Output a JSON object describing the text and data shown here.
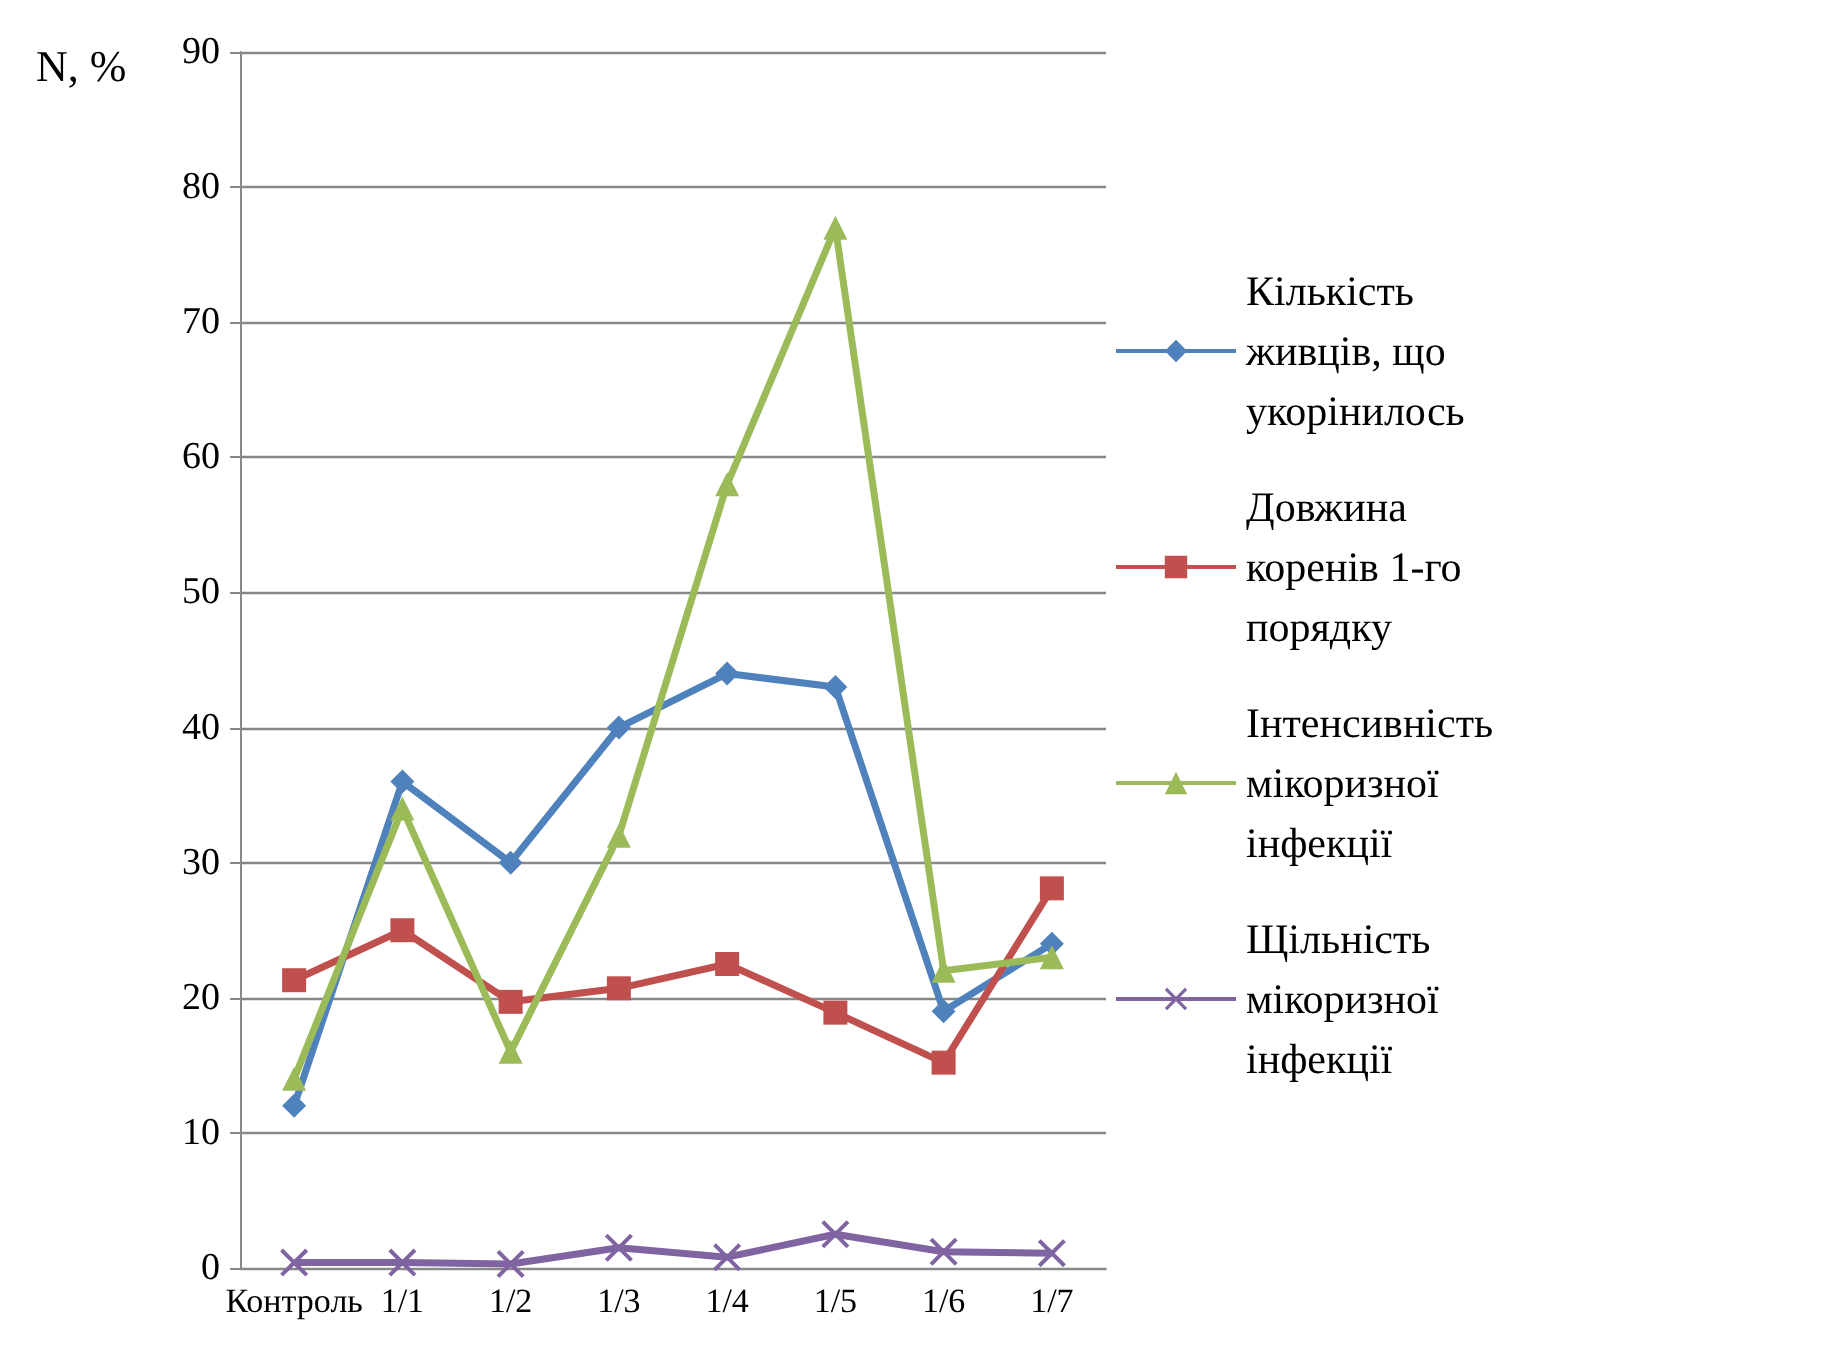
{
  "chart_data": {
    "type": "line",
    "ylabel": "N, %",
    "categories": [
      "Контроль",
      "1/1",
      "1/2",
      "1/3",
      "1/4",
      "1/5",
      "1/6",
      "1/7"
    ],
    "series": [
      {
        "name": "Кількість живців, що укорінилось",
        "color": "#4f81bd",
        "marker": "diamond",
        "values": [
          12,
          36,
          30,
          40,
          44,
          43,
          19,
          24
        ]
      },
      {
        "name": "Довжина коренів 1-го порядку",
        "color": "#c0504d",
        "marker": "square",
        "values": [
          21.3,
          25,
          19.7,
          20.7,
          22.5,
          18.9,
          15.2,
          28.1
        ]
      },
      {
        "name": "Інтенсивність мікоризної інфекції",
        "color": "#9bbb59",
        "marker": "triangle",
        "values": [
          14,
          34,
          16,
          32,
          58,
          77,
          22,
          23
        ]
      },
      {
        "name": "Щільність мікоризної інфекції",
        "color": "#8064a2",
        "marker": "cross",
        "values": [
          0.4,
          0.4,
          0.3,
          1.5,
          0.8,
          2.5,
          1.2,
          1.1
        ]
      }
    ],
    "ylim": [
      0,
      90
    ],
    "yticks": [
      0,
      10,
      20,
      30,
      40,
      50,
      60,
      70,
      80,
      90
    ],
    "grid": "y",
    "legend": "right",
    "line_style": "solid"
  }
}
